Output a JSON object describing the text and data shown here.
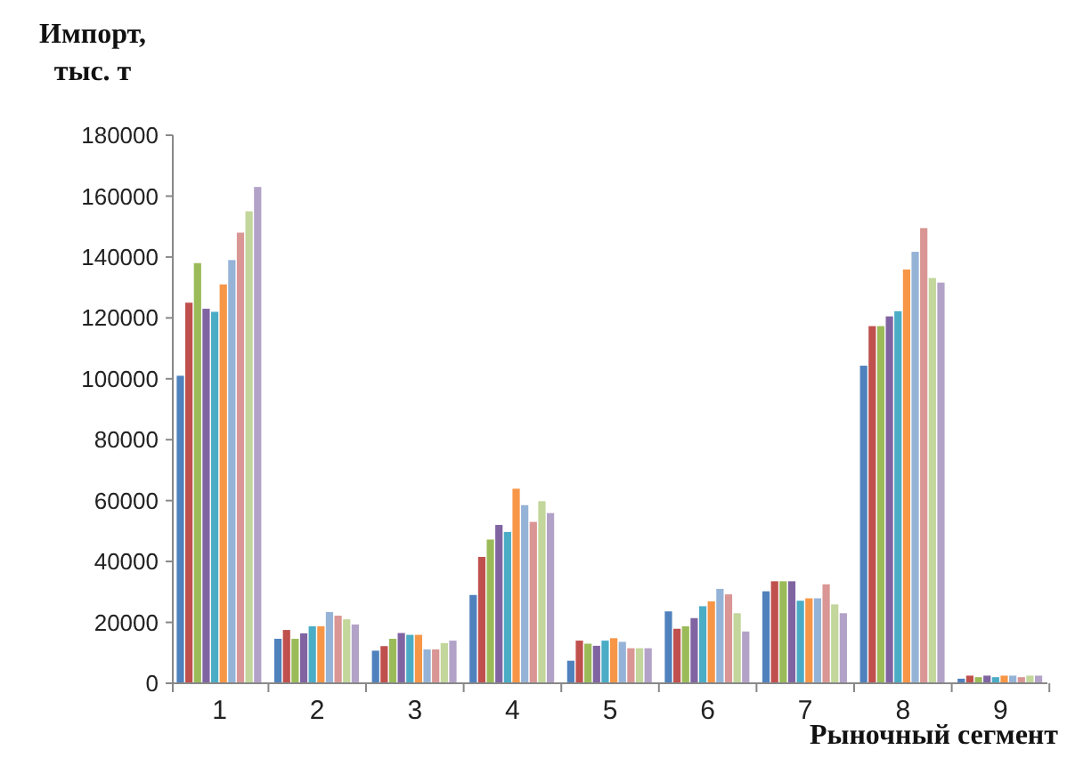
{
  "chart_data": {
    "type": "bar",
    "xlabel": "Рыночный сегмент",
    "ylabel": "Импорт,\nтыс. т",
    "categories": [
      "1",
      "2",
      "3",
      "4",
      "5",
      "6",
      "7",
      "8",
      "9"
    ],
    "ylim": [
      0,
      180000
    ],
    "yticks": [
      0,
      20000,
      40000,
      60000,
      80000,
      100000,
      120000,
      140000,
      160000,
      180000
    ],
    "grid": false,
    "series": [
      {
        "color": "#4f81bd",
        "values": [
          101000,
          14600,
          10700,
          29000,
          7400,
          23600,
          30200,
          104300,
          1500
        ]
      },
      {
        "color": "#c0504d",
        "values": [
          125000,
          17500,
          12200,
          41500,
          14000,
          17900,
          33500,
          117300,
          2500
        ]
      },
      {
        "color": "#9bbb59",
        "values": [
          138000,
          14600,
          14600,
          47200,
          13000,
          18700,
          33500,
          117300,
          2000
        ]
      },
      {
        "color": "#8064a2",
        "values": [
          123000,
          16400,
          16500,
          52000,
          12300,
          21400,
          33500,
          120500,
          2500
        ]
      },
      {
        "color": "#4bacc6",
        "values": [
          122000,
          18700,
          15900,
          49700,
          14000,
          25300,
          27100,
          122200,
          2000
        ]
      },
      {
        "color": "#f79646",
        "values": [
          131000,
          18700,
          15900,
          63900,
          14800,
          26900,
          27900,
          135900,
          2500
        ]
      },
      {
        "color": "#95b3d7",
        "values": [
          139000,
          23400,
          11100,
          58500,
          13600,
          31000,
          27900,
          141700,
          2500
        ]
      },
      {
        "color": "#d99694",
        "values": [
          148000,
          22200,
          11100,
          53000,
          11500,
          29200,
          32500,
          149500,
          2000
        ]
      },
      {
        "color": "#c3d69b",
        "values": [
          155000,
          21000,
          13200,
          59800,
          11500,
          23000,
          25900,
          133100,
          2500
        ]
      },
      {
        "color": "#b3a2c7",
        "values": [
          163000,
          19300,
          14000,
          55900,
          11500,
          17000,
          23000,
          131600,
          2500
        ]
      }
    ]
  }
}
